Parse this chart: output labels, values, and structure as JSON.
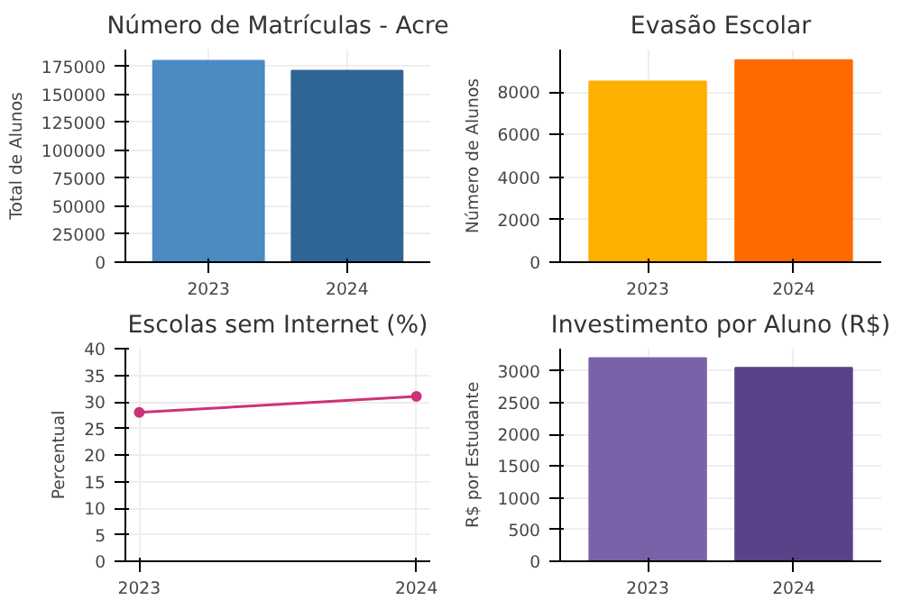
{
  "chart_data": [
    {
      "type": "bar",
      "title": "Número de Matrículas - Acre",
      "ylabel": "Total de Alunos",
      "categories": [
        "2023",
        "2024"
      ],
      "values": [
        180000,
        171000
      ],
      "colors": [
        "#4a8bc2",
        "#2f6496"
      ],
      "ylim": [
        0,
        190000
      ],
      "yticks": [
        0,
        25000,
        50000,
        75000,
        100000,
        125000,
        150000,
        175000
      ],
      "grid": true
    },
    {
      "type": "bar",
      "title": "Evasão Escolar",
      "ylabel": "Número de Alunos",
      "categories": [
        "2023",
        "2024"
      ],
      "values": [
        8500,
        9500
      ],
      "colors": [
        "#ffaf00",
        "#ff6a00"
      ],
      "ylim": [
        0,
        10000
      ],
      "yticks": [
        0,
        2000,
        4000,
        6000,
        8000
      ],
      "grid": true
    },
    {
      "type": "line",
      "title": "Escolas sem Internet (%)",
      "ylabel": "Percentual",
      "x": [
        2023,
        2024
      ],
      "xlim": [
        2022.95,
        2024.05
      ],
      "xticks": [
        2023,
        2024
      ],
      "series": [
        {
          "color": "#cc3377",
          "values": [
            28,
            31
          ]
        }
      ],
      "marker": "circle",
      "ylim": [
        0,
        40
      ],
      "yticks": [
        0,
        5,
        10,
        15,
        20,
        25,
        30,
        35,
        40
      ],
      "grid": true
    },
    {
      "type": "bar",
      "title": "Investimento por Aluno (R$)",
      "ylabel": "R$ por Estudante",
      "categories": [
        "2023",
        "2024"
      ],
      "values": [
        3200,
        3050
      ],
      "colors": [
        "#7b62a8",
        "#5a4188"
      ],
      "ylim": [
        0,
        3350
      ],
      "yticks": [
        0,
        500,
        1000,
        1500,
        2000,
        2500,
        3000
      ],
      "grid": true
    }
  ]
}
